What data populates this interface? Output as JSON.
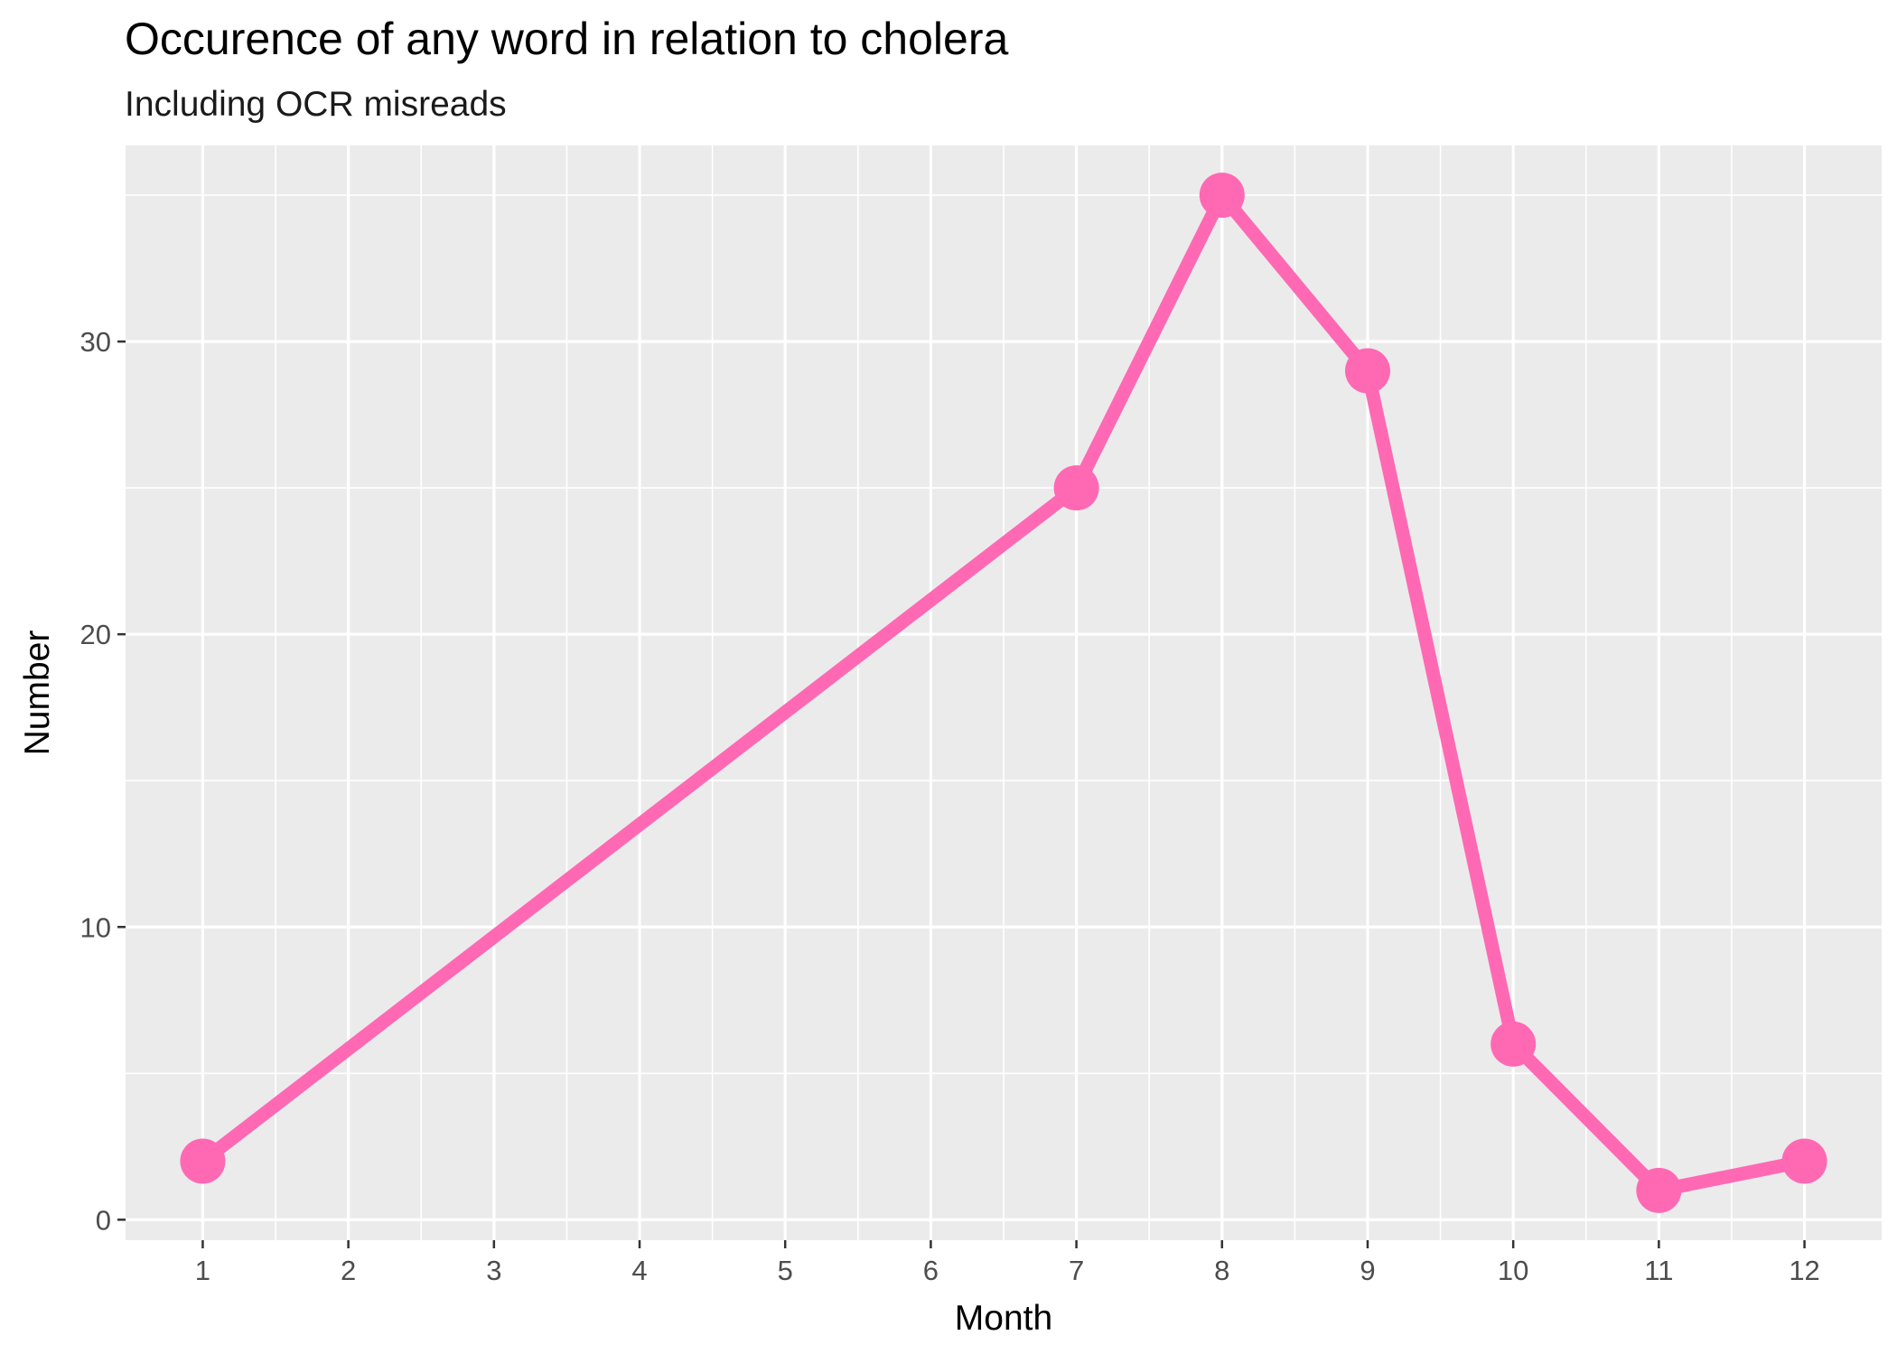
{
  "chart_data": {
    "type": "line",
    "title": "Occurence of any word in relation to cholera",
    "subtitle": "Including OCR misreads",
    "xlabel": "Month",
    "ylabel": "Number",
    "x": [
      1,
      7,
      8,
      9,
      10,
      11,
      12
    ],
    "series": [
      {
        "values": [
          2,
          25,
          35,
          29,
          6,
          1,
          2
        ]
      }
    ],
    "x_ticks": [
      1,
      2,
      3,
      4,
      5,
      6,
      7,
      8,
      9,
      10,
      11,
      12
    ],
    "y_ticks": [
      0,
      10,
      20,
      30
    ],
    "xlim": [
      0.47,
      12.53
    ],
    "ylim": [
      -0.7,
      36.7
    ],
    "grid": true,
    "legend": "none",
    "colors": {
      "series": "#ff69b4",
      "panel": "#ebebeb",
      "gridline": "#ffffff",
      "tick_text": "#4d4d4d",
      "tick_mark": "#333333"
    }
  }
}
